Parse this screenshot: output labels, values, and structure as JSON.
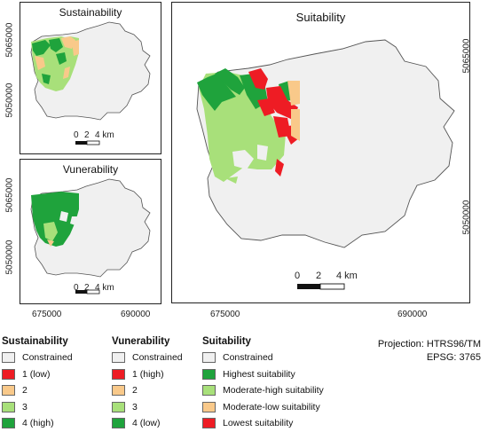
{
  "maps": {
    "sustainability": {
      "title": "Sustainability",
      "y_top": "5065000",
      "y_bottom": "5050000",
      "scale_labels": [
        "0",
        "2",
        "4 km"
      ]
    },
    "vunerability": {
      "title": "Vunerability",
      "y_top": "5065000",
      "y_bottom": "5050000",
      "scale_labels": [
        "0",
        "2",
        "4 km"
      ]
    },
    "suitability": {
      "title": "Suitability",
      "y_top": "5065000",
      "y_bottom": "5050000",
      "scale_labels": [
        "0",
        "2",
        "4 km"
      ]
    },
    "x_labels": {
      "left": "675000",
      "right": "690000"
    }
  },
  "legends": [
    {
      "title": "Sustainability",
      "items": [
        {
          "label": "Constrained",
          "color": "#f0f0f0"
        },
        {
          "label": "1 (low)",
          "color": "#ee1c24"
        },
        {
          "label": "2",
          "color": "#f9c98a"
        },
        {
          "label": "3",
          "color": "#a8e07a"
        },
        {
          "label": "4 (high)",
          "color": "#1fa33c"
        }
      ]
    },
    {
      "title": "Vunerability",
      "items": [
        {
          "label": "Constrained",
          "color": "#f0f0f0"
        },
        {
          "label": "1 (high)",
          "color": "#ee1c24"
        },
        {
          "label": "2",
          "color": "#f9c98a"
        },
        {
          "label": "3",
          "color": "#a8e07a"
        },
        {
          "label": "4 (low)",
          "color": "#1fa33c"
        }
      ]
    },
    {
      "title": "Suitability",
      "items": [
        {
          "label": "Constrained",
          "color": "#f0f0f0"
        },
        {
          "label": "Highest suitability",
          "color": "#1fa33c"
        },
        {
          "label": "Moderate-high suitability",
          "color": "#a8e07a"
        },
        {
          "label": "Moderate-low suitability",
          "color": "#f9c98a"
        },
        {
          "label": "Lowest suitability",
          "color": "#ee1c24"
        }
      ]
    }
  ],
  "projection": {
    "line1": "Projection: HTRS96/TM",
    "line2": "EPSG: 3765"
  }
}
